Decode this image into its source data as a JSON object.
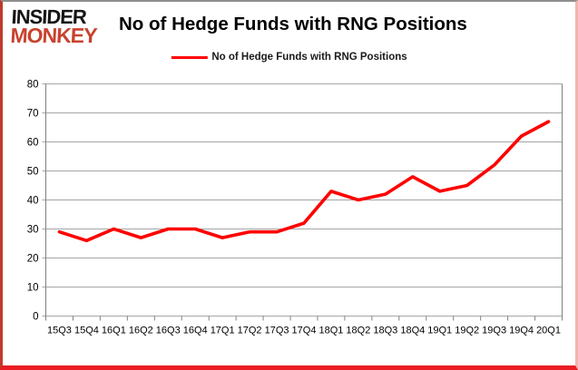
{
  "branding": {
    "logo_line1": "INSIDER",
    "logo_line2": "MONKEY"
  },
  "header": {
    "title": "No of Hedge Funds with RNG Positions"
  },
  "legend": {
    "label": "No of Hedge Funds with RNG Positions"
  },
  "colors": {
    "series_line": "#fe0000",
    "gridline": "#a6a6a6",
    "axis": "#808080",
    "tick_text": "#000000",
    "logo_accent": "#c8432f"
  },
  "chart_data": {
    "type": "line",
    "title": "No of Hedge Funds with RNG Positions",
    "categories": [
      "15Q3",
      "15Q4",
      "16Q1",
      "16Q2",
      "16Q3",
      "16Q4",
      "17Q1",
      "17Q2",
      "17Q3",
      "17Q4",
      "18Q1",
      "18Q2",
      "18Q3",
      "18Q4",
      "19Q1",
      "19Q2",
      "19Q3",
      "19Q4",
      "20Q1"
    ],
    "series": [
      {
        "name": "No of Hedge Funds with RNG Positions",
        "color": "#fe0000",
        "values": [
          29,
          26,
          30,
          27,
          30,
          30,
          27,
          29,
          29,
          32,
          43,
          40,
          42,
          48,
          43,
          45,
          52,
          62,
          67
        ]
      }
    ],
    "xlabel": "",
    "ylabel": "",
    "ylim": [
      0,
      80
    ],
    "yticks": [
      0,
      10,
      20,
      30,
      40,
      50,
      60,
      70,
      80
    ],
    "grid": "horizontal",
    "legend_position": "top-center"
  }
}
